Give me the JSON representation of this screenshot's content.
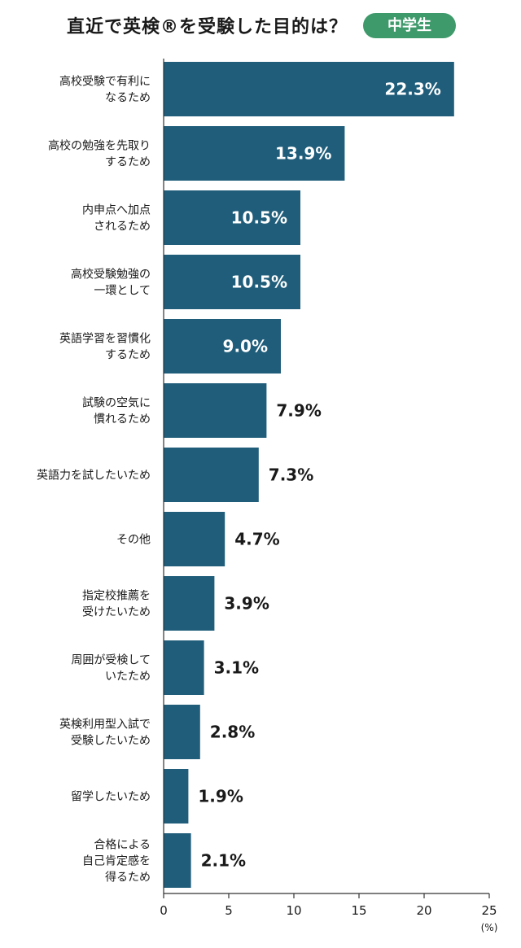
{
  "header": {
    "title": "直近で英検®を受験した目的は？",
    "badge": "中学生"
  },
  "chart_data": {
    "type": "bar",
    "orientation": "horizontal",
    "title": "直近で英検®を受験した目的は？",
    "categories": [
      [
        "高校受験で有利に",
        "なるため"
      ],
      [
        "高校の勉強を先取り",
        "するため"
      ],
      [
        "内申点へ加点",
        "されるため"
      ],
      [
        "高校受験勉強の",
        "一環として"
      ],
      [
        "英語学習を習慣化",
        "するため"
      ],
      [
        "試験の空気に",
        "慣れるため"
      ],
      [
        "英語力を試したいため"
      ],
      [
        "その他"
      ],
      [
        "指定校推薦を",
        "受けたいため"
      ],
      [
        "周囲が受検して",
        "いたため"
      ],
      [
        "英検利用型入試で",
        "受験したいため"
      ],
      [
        "留学したいため"
      ],
      [
        "合格による",
        "自己肯定感を",
        "得るため"
      ]
    ],
    "values": [
      22.3,
      13.9,
      10.5,
      10.5,
      9.0,
      7.9,
      7.3,
      4.7,
      3.9,
      3.1,
      2.8,
      1.9,
      2.1
    ],
    "value_labels": [
      "22.3%",
      "13.9%",
      "10.5%",
      "10.5%",
      "9.0%",
      "7.9%",
      "7.3%",
      "4.7%",
      "3.9%",
      "3.1%",
      "2.8%",
      "1.9%",
      "2.1%"
    ],
    "xlim": [
      0,
      25
    ],
    "xticks": [
      0,
      5,
      10,
      15,
      20,
      25
    ],
    "xunit": "(%)",
    "bar_color": "#1f5d7a",
    "grid": false
  }
}
